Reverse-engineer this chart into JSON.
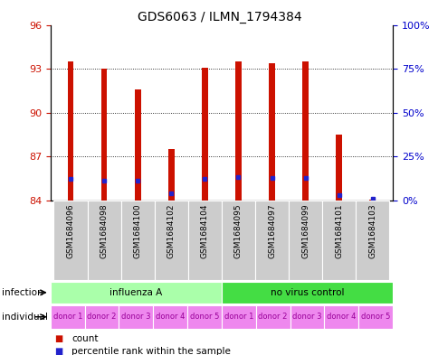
{
  "title": "GDS6063 / ILMN_1794384",
  "samples": [
    "GSM1684096",
    "GSM1684098",
    "GSM1684100",
    "GSM1684102",
    "GSM1684104",
    "GSM1684095",
    "GSM1684097",
    "GSM1684099",
    "GSM1684101",
    "GSM1684103"
  ],
  "red_values": [
    93.5,
    93.0,
    91.6,
    87.5,
    93.1,
    93.5,
    93.4,
    93.5,
    88.5,
    84.05
  ],
  "blue_values": [
    85.5,
    85.35,
    85.35,
    84.48,
    85.5,
    85.6,
    85.55,
    85.55,
    84.38,
    84.12
  ],
  "base": 84,
  "ylim_left": [
    84,
    96
  ],
  "ylim_right": [
    0,
    100
  ],
  "yticks_left": [
    84,
    87,
    90,
    93,
    96
  ],
  "yticks_right": [
    0,
    25,
    50,
    75,
    100
  ],
  "ytick_labels_right": [
    "0%",
    "25%",
    "50%",
    "75%",
    "100%"
  ],
  "infection_colors": [
    "#aaffaa",
    "#44dd44"
  ],
  "infection_text": [
    "influenza A",
    "no virus control"
  ],
  "individual_labels": [
    "donor 1",
    "donor 2",
    "donor 3",
    "donor 4",
    "donor 5",
    "donor 1",
    "donor 2",
    "donor 3",
    "donor 4",
    "donor 5"
  ],
  "individual_color": "#ee88ee",
  "individual_text_color": "#990099",
  "bar_width": 0.18,
  "bar_color": "#cc1100",
  "dot_color": "#2222cc",
  "dot_size": 3.5,
  "bg_color": "#ffffff",
  "grid_color": "#000000",
  "left_tick_color": "#cc1100",
  "right_tick_color": "#0000cc",
  "sample_bg_color": "#cccccc",
  "label_fontsize": 7.5,
  "tick_fontsize": 8,
  "sample_fontsize": 6.5,
  "title_fontsize": 10
}
